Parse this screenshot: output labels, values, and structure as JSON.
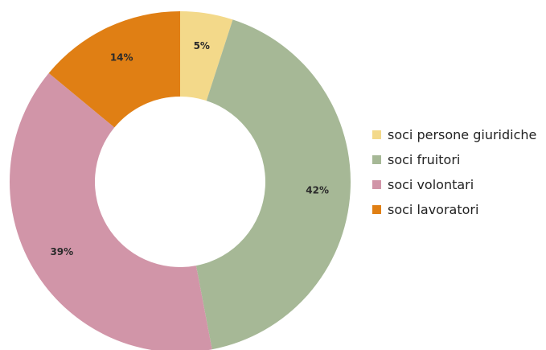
{
  "chart_data": {
    "type": "pie",
    "donut": true,
    "legend_position": "right",
    "slices": [
      {
        "label": "soci persone giuridiche",
        "value": 5,
        "display": "5%",
        "color": "#f3d98a"
      },
      {
        "label": "soci fruitori",
        "value": 42,
        "display": "42%",
        "color": "#a6b896"
      },
      {
        "label": "soci volontari",
        "value": 39,
        "display": "39%",
        "color": "#d195a8"
      },
      {
        "label": "soci lavoratori",
        "value": 14,
        "display": "14%",
        "color": "#e07f14"
      }
    ]
  }
}
